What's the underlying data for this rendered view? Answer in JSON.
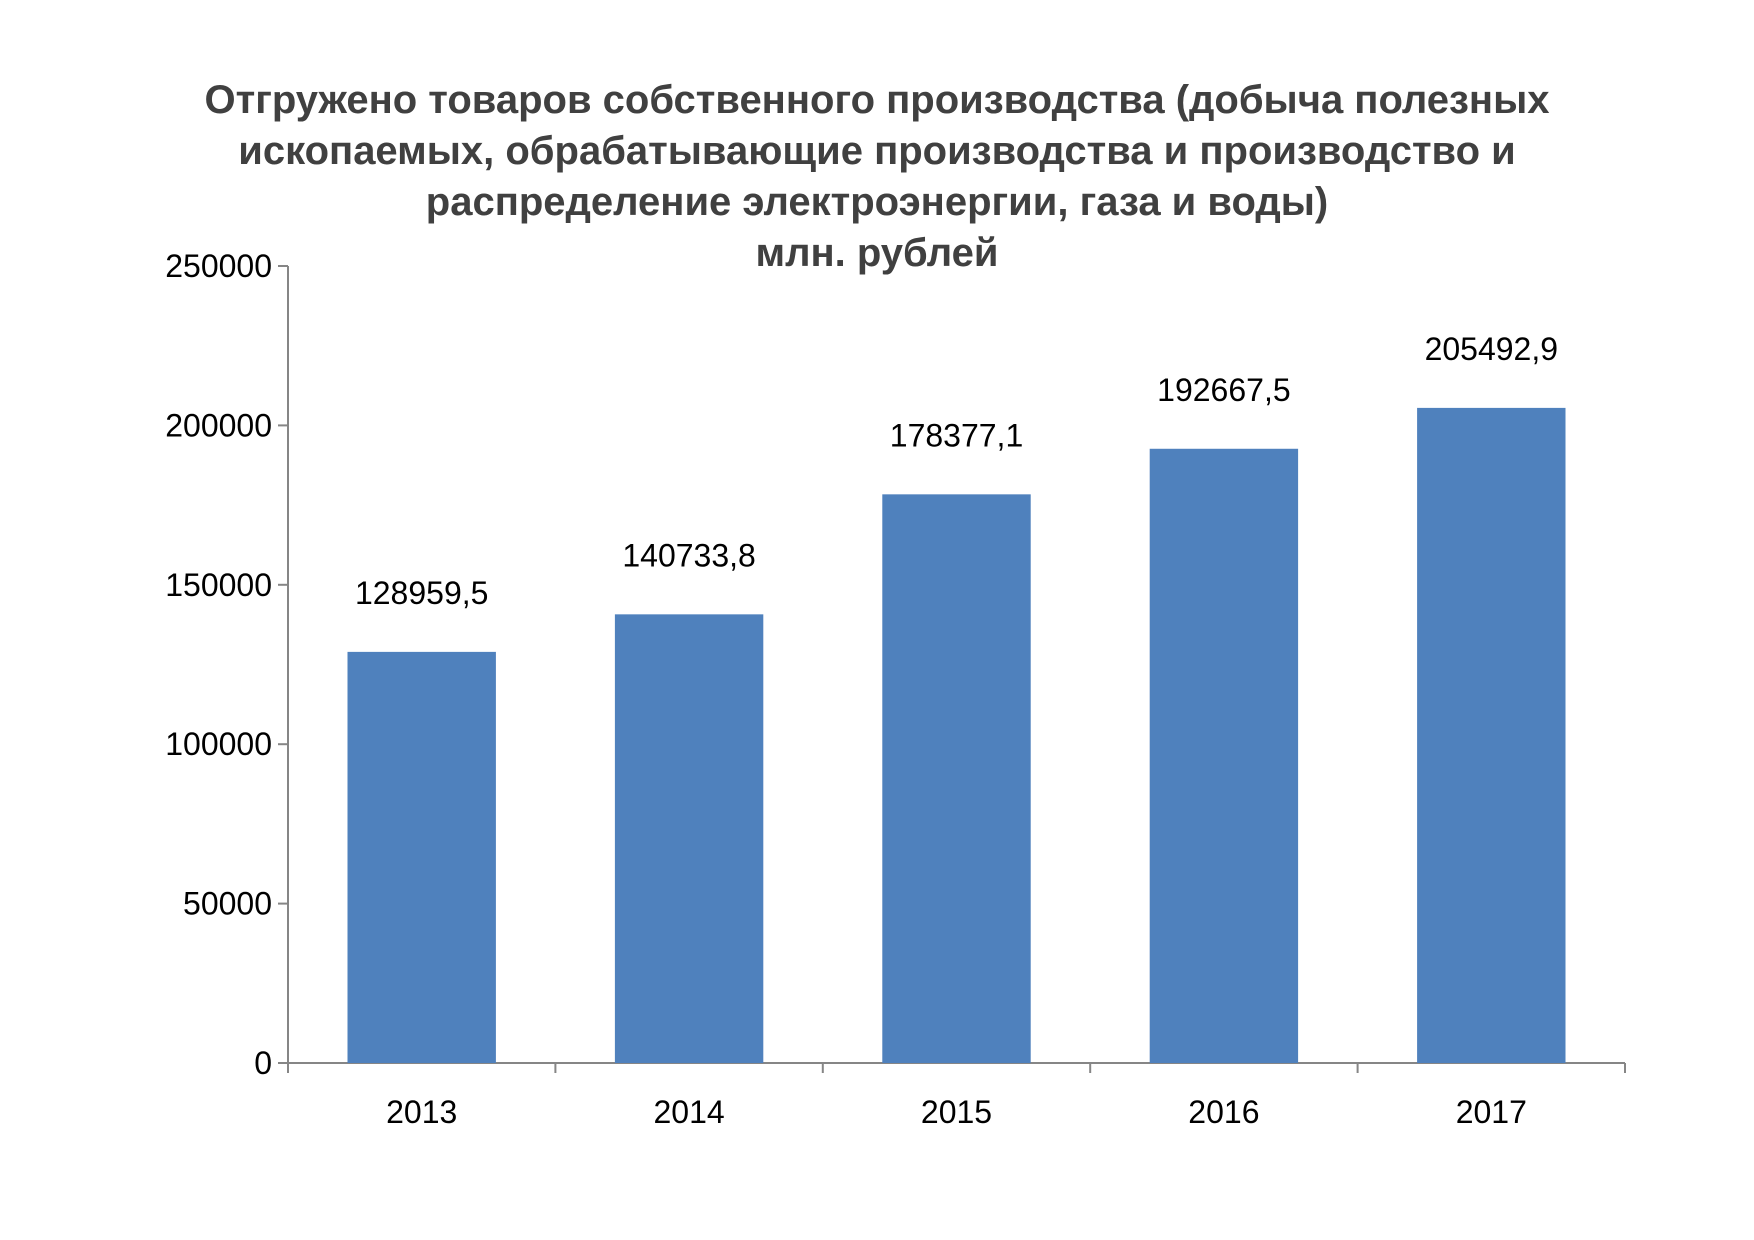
{
  "chart_data": {
    "type": "bar",
    "title_lines": [
      "Отгружено товаров собственного производства (добыча полезных",
      "ископаемых, обрабатывающие производства и производство и",
      "распределение электроэнергии, газа и воды)",
      "млн. рублей"
    ],
    "categories": [
      "2013",
      "2014",
      "2015",
      "2016",
      "2017"
    ],
    "values": [
      128959.5,
      140733.8,
      178377.1,
      192667.5,
      205492.9
    ],
    "data_labels": [
      "128959,5",
      "140733,8",
      "178377,1",
      "192667,5",
      "205492,9"
    ],
    "y_ticks": [
      0,
      50000,
      100000,
      150000,
      200000,
      250000
    ],
    "ylim": [
      0,
      250000
    ],
    "xlabel": "",
    "ylabel": "",
    "grid": false,
    "legend": "none",
    "bar_color": "#4F81BD"
  }
}
